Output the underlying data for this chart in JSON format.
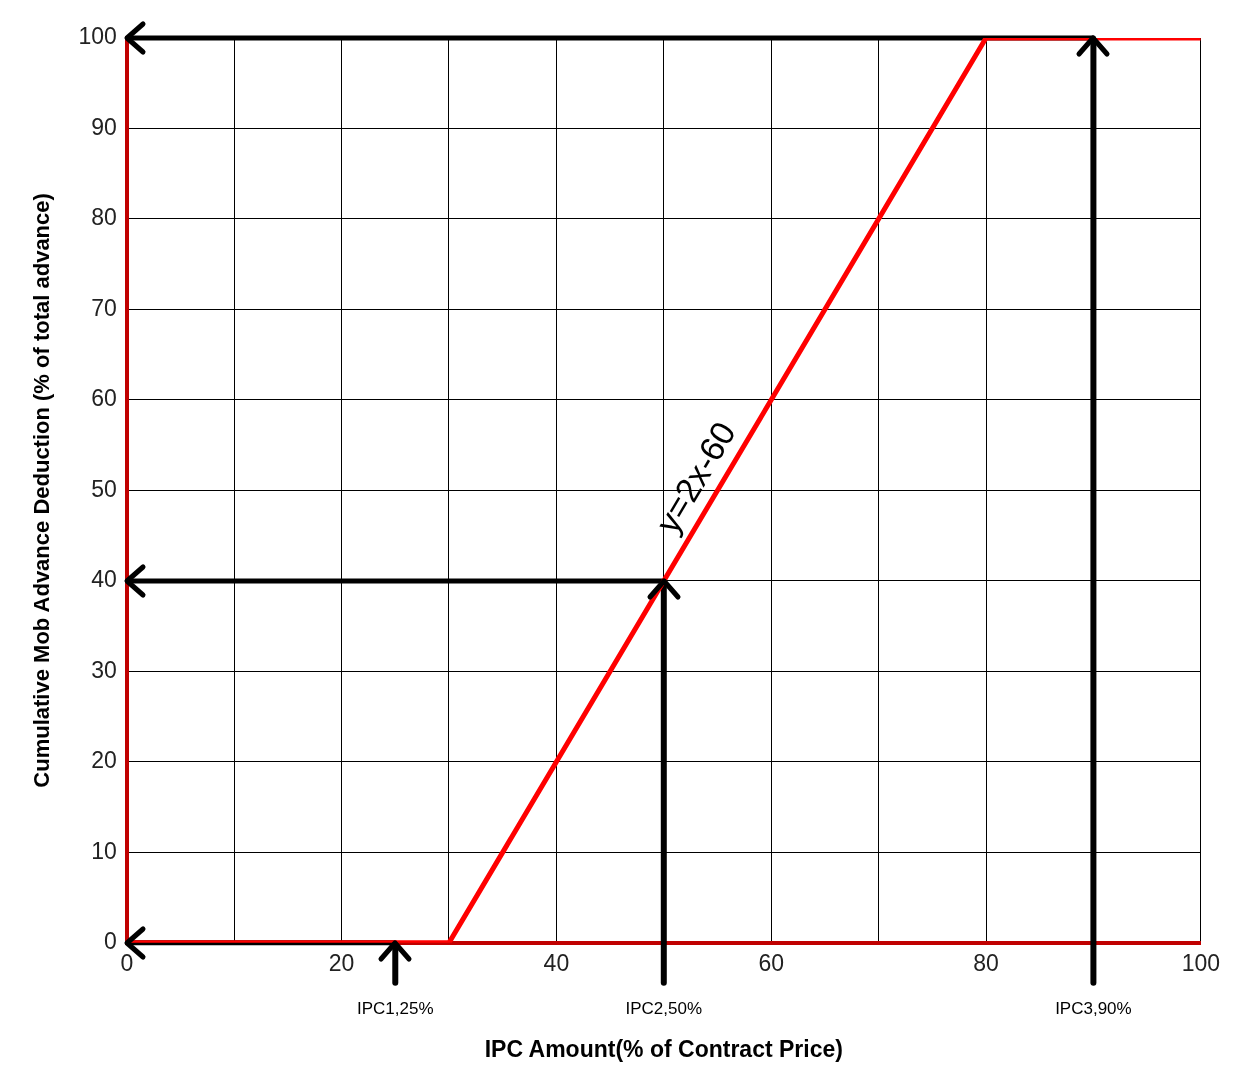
{
  "chart_data": {
    "type": "line",
    "xlabel": "IPC Amount(% of Contract Price)",
    "ylabel": "Cumulative Mob Advance Deduction (% of total advance)",
    "x": [
      0,
      30,
      80,
      100
    ],
    "series": [
      {
        "color": "#ff0000",
        "values": [
          0,
          0,
          100,
          100
        ]
      }
    ],
    "xlim": [
      0,
      100
    ],
    "xticks": [
      0,
      {
        "value": 10,
        "label": null
      },
      20,
      {
        "value": 30,
        "label": null
      },
      40,
      {
        "value": 50,
        "label": null
      },
      60,
      {
        "value": 70,
        "label": null
      },
      80,
      {
        "value": 90,
        "label": null
      },
      100
    ],
    "ylim": [
      0,
      100
    ],
    "yticks": [
      0,
      10,
      20,
      30,
      40,
      50,
      60,
      70,
      80,
      90,
      100
    ],
    "grid": true,
    "legend": false,
    "marker": "none",
    "line_style": "solid",
    "ref_lines": [
      {
        "axis": "x",
        "value": 25,
        "label": "IPC1,25%",
        "color": "#000000"
      },
      {
        "axis": "x",
        "value": 50,
        "label": "IPC2,50%",
        "color": "#000000"
      },
      {
        "axis": "x",
        "value": 90,
        "label": "IPC3,90%",
        "color": "#000000"
      },
      {
        "axis": "y",
        "value": 0,
        "label": null,
        "color": "#000000"
      },
      {
        "axis": "y",
        "value": 40,
        "label": null,
        "color": "#000000"
      },
      {
        "axis": "y",
        "value": 100,
        "label": null,
        "color": "#000000"
      }
    ],
    "annotations": [
      "y=2x-60"
    ]
  }
}
